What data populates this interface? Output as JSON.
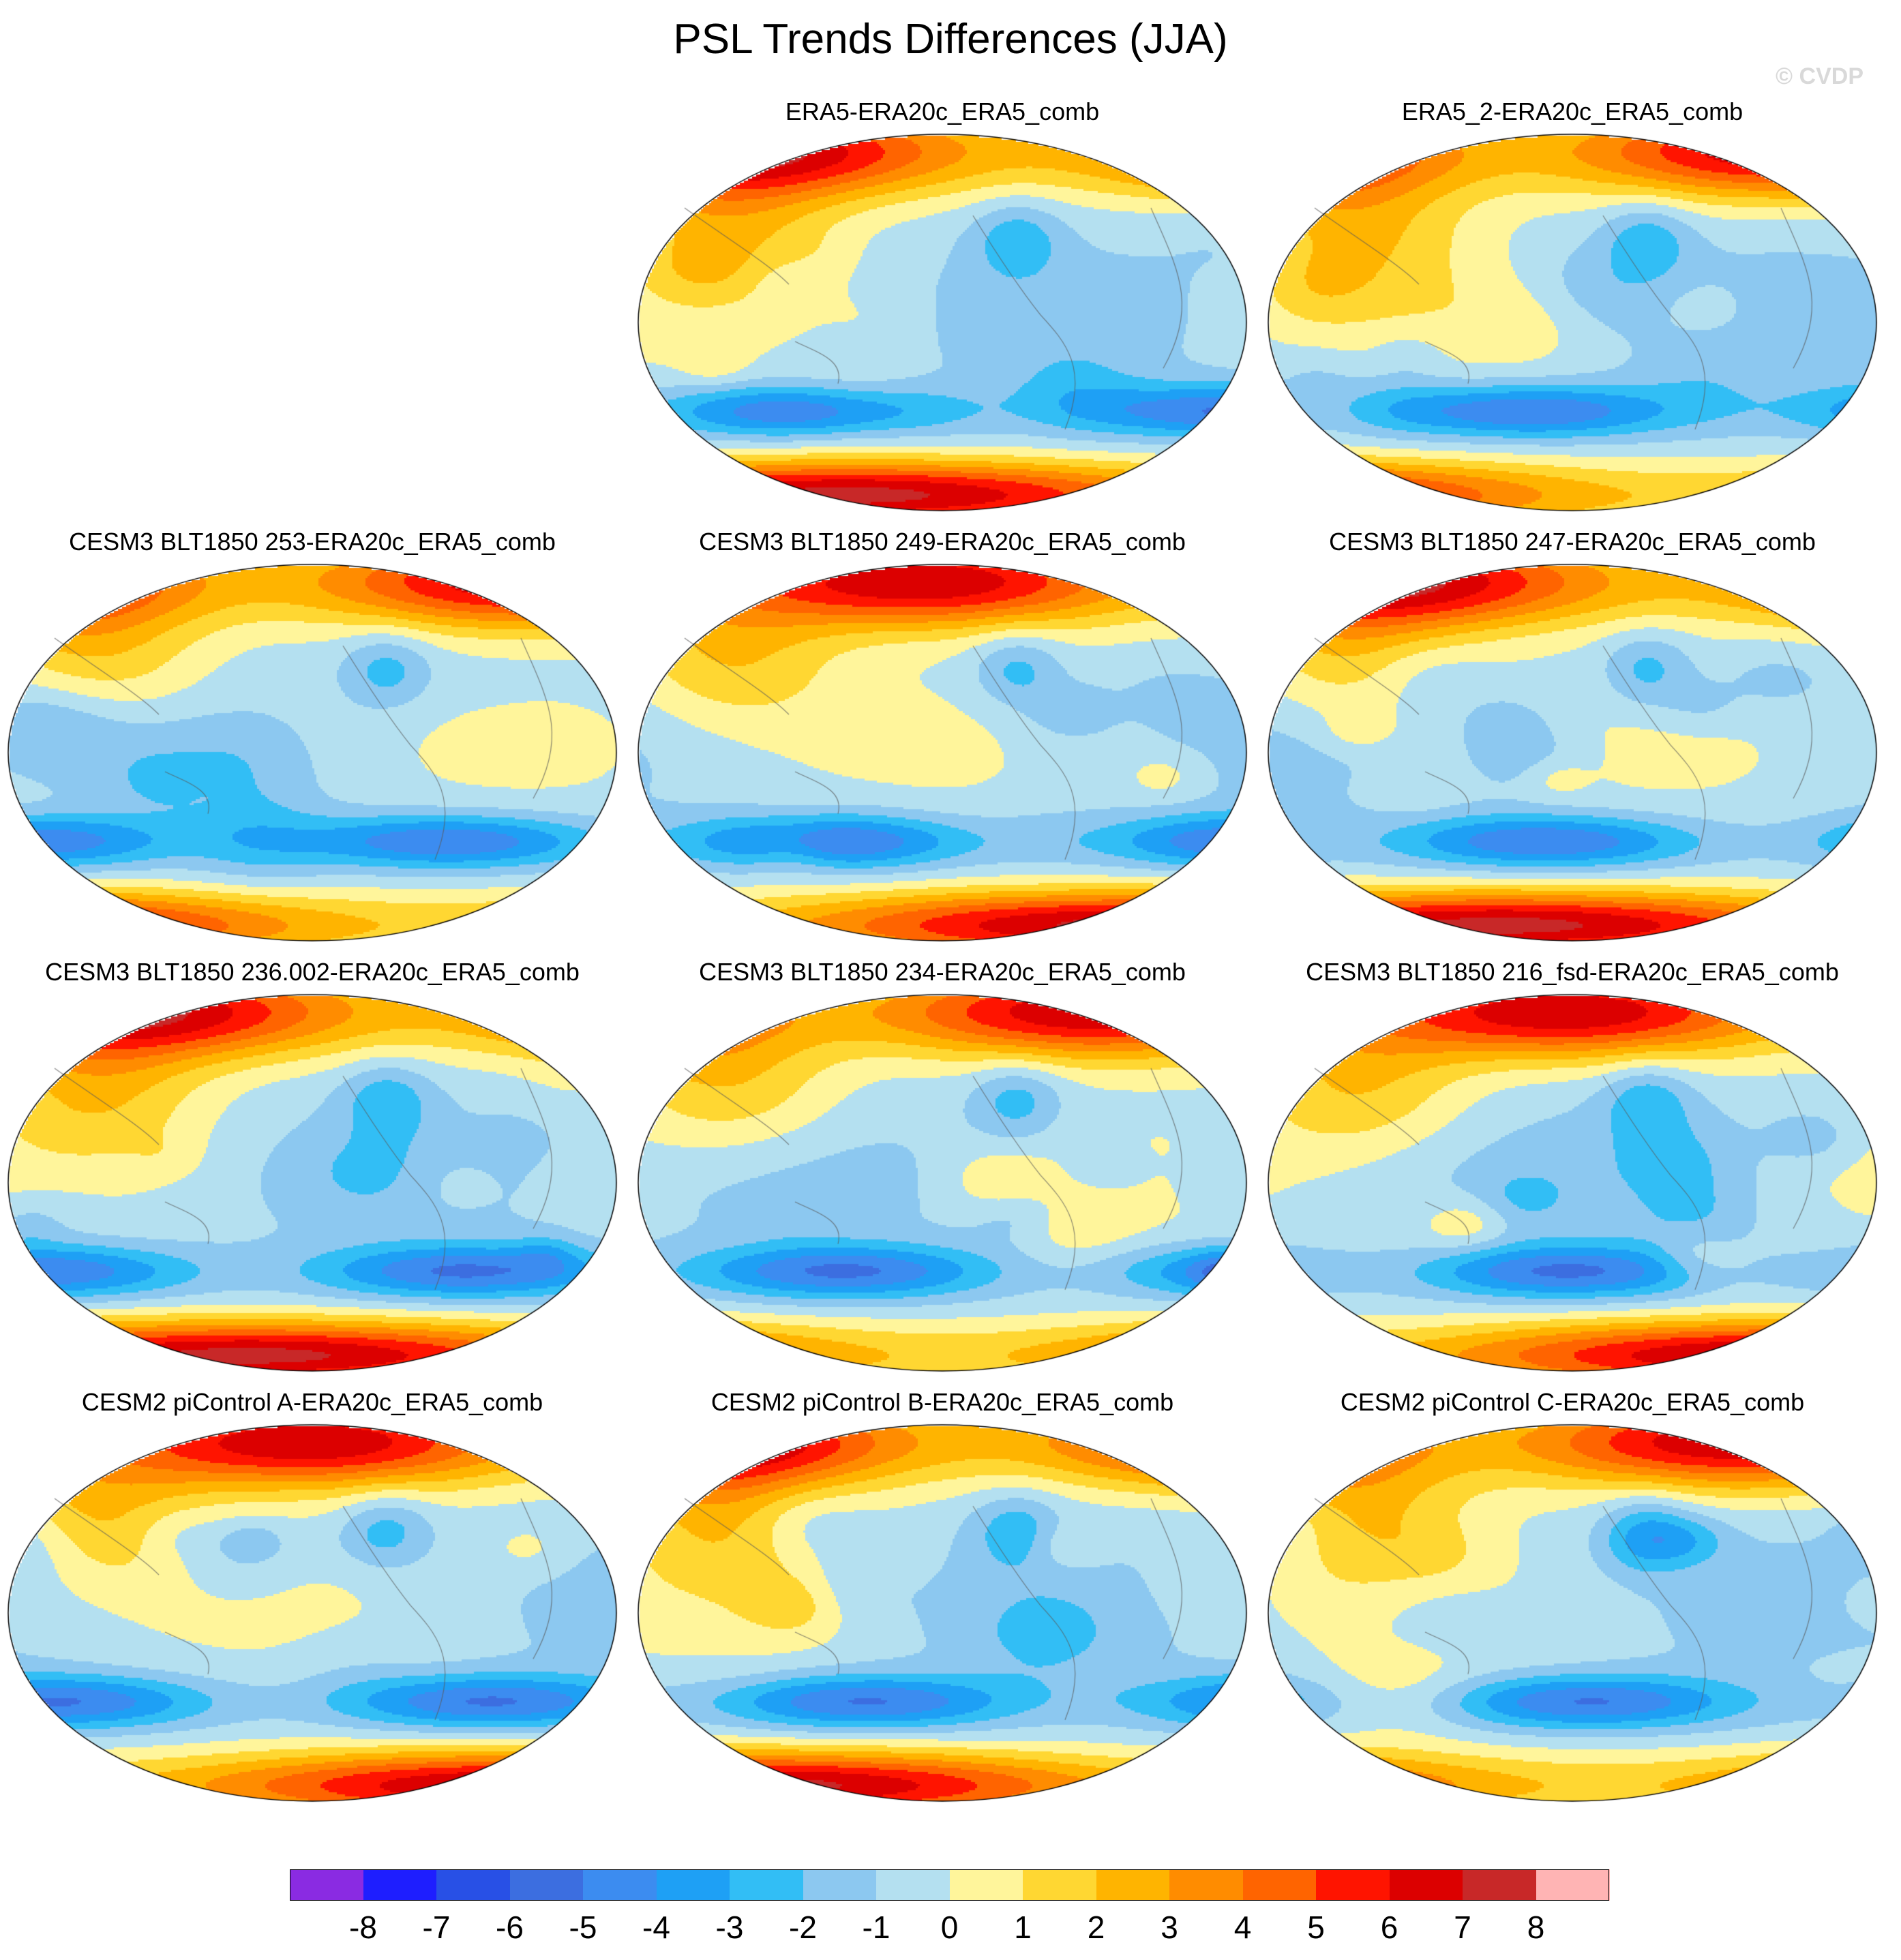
{
  "title": "PSL Trends Differences (JJA)",
  "watermark": "© CVDP",
  "panels": [
    {
      "title": "ERA5-ERA20c_ERA5_comb",
      "seed": 11
    },
    {
      "title": "ERA5_2-ERA20c_ERA5_comb",
      "seed": 23
    },
    {
      "title": "CESM3 BLT1850 253-ERA20c_ERA5_comb",
      "seed": 37
    },
    {
      "title": "CESM3 BLT1850 249-ERA20c_ERA5_comb",
      "seed": 41
    },
    {
      "title": "CESM3 BLT1850 247-ERA20c_ERA5_comb",
      "seed": 53
    },
    {
      "title": "CESM3 BLT1850 236.002-ERA20c_ERA5_comb",
      "seed": 67
    },
    {
      "title": "CESM3 BLT1850 234-ERA20c_ERA5_comb",
      "seed": 71
    },
    {
      "title": "CESM3 BLT1850 216_fsd-ERA20c_ERA5_comb",
      "seed": 83
    },
    {
      "title": "CESM2 piControl A-ERA20c_ERA5_comb",
      "seed": 97
    },
    {
      "title": "CESM2 piControl B-ERA20c_ERA5_comb",
      "seed": 101
    },
    {
      "title": "CESM2 piControl C-ERA20c_ERA5_comb",
      "seed": 113
    }
  ],
  "colorbar": {
    "labels": [
      "-8",
      "-7",
      "-6",
      "-5",
      "-4",
      "-3",
      "-2",
      "-1",
      "0",
      "1",
      "2",
      "3",
      "4",
      "5",
      "6",
      "7",
      "8"
    ],
    "colors": [
      "#8a2be2",
      "#1e1eff",
      "#2850e6",
      "#3c6ee0",
      "#3c8cf0",
      "#1ea0f5",
      "#32bef5",
      "#8cc8f0",
      "#b4e0f0",
      "#fff59b",
      "#ffd732",
      "#ffb400",
      "#ff8c00",
      "#ff6400",
      "#ff1400",
      "#dc0000",
      "#c82828",
      "#ffb4b4"
    ]
  }
}
